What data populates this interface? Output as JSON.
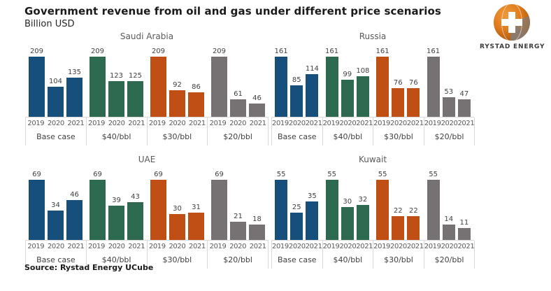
{
  "header": {
    "title": "Government revenue from oil and gas under different price scenarios",
    "subtitle": "Billion USD"
  },
  "logo": {
    "brand": "RYSTAD ENERGY"
  },
  "footer": {
    "source": "Source: Rystad Energy UCube"
  },
  "colors": {
    "base_case": "#164F7C",
    "40bbl": "#2D6A50",
    "30bbl": "#C04F15",
    "20bbl": "#767173",
    "axis_line": "#D9D9D9"
  },
  "chart_data": [
    {
      "type": "bar",
      "title": "Saudi Arabia",
      "unit": "Billion USD",
      "years": [
        "2019",
        "2020",
        "2021"
      ],
      "groups": [
        {
          "label": "Base case",
          "color": "#164F7C",
          "values": [
            209,
            104,
            135
          ]
        },
        {
          "label": "$40/bbl",
          "color": "#2D6A50",
          "values": [
            209,
            123,
            125
          ]
        },
        {
          "label": "$30/bbl",
          "color": "#C04F15",
          "values": [
            209,
            92,
            86
          ]
        },
        {
          "label": "$20/bbl",
          "color": "#767173",
          "values": [
            209,
            61,
            46
          ]
        }
      ]
    },
    {
      "type": "bar",
      "title": "Russia",
      "unit": "Billion USD",
      "years": [
        "2019",
        "2020",
        "2021"
      ],
      "groups": [
        {
          "label": "Base case",
          "color": "#164F7C",
          "values": [
            161,
            85,
            114
          ]
        },
        {
          "label": "$40/bbl",
          "color": "#2D6A50",
          "values": [
            161,
            99,
            108
          ]
        },
        {
          "label": "$30/bbl",
          "color": "#C04F15",
          "values": [
            161,
            76,
            76
          ]
        },
        {
          "label": "$20/bbl",
          "color": "#767173",
          "values": [
            161,
            53,
            47
          ]
        }
      ]
    },
    {
      "type": "bar",
      "title": "UAE",
      "unit": "Billion USD",
      "years": [
        "2019",
        "2020",
        "2021"
      ],
      "groups": [
        {
          "label": "Base case",
          "color": "#164F7C",
          "values": [
            69,
            34,
            46
          ]
        },
        {
          "label": "$40/bbl",
          "color": "#2D6A50",
          "values": [
            69,
            39,
            43
          ]
        },
        {
          "label": "$30/bbl",
          "color": "#C04F15",
          "values": [
            69,
            30,
            31
          ]
        },
        {
          "label": "$20/bbl",
          "color": "#767173",
          "values": [
            69,
            21,
            18
          ]
        }
      ]
    },
    {
      "type": "bar",
      "title": "Kuwait",
      "unit": "Billion USD",
      "years": [
        "2019",
        "2020",
        "2021"
      ],
      "groups": [
        {
          "label": "Base case",
          "color": "#164F7C",
          "values": [
            55,
            25,
            35
          ]
        },
        {
          "label": "$40/bbl",
          "color": "#2D6A50",
          "values": [
            55,
            30,
            32
          ]
        },
        {
          "label": "$30/bbl",
          "color": "#C04F15",
          "values": [
            55,
            22,
            22
          ]
        },
        {
          "label": "$20/bbl",
          "color": "#767173",
          "values": [
            55,
            14,
            11
          ]
        }
      ]
    }
  ]
}
